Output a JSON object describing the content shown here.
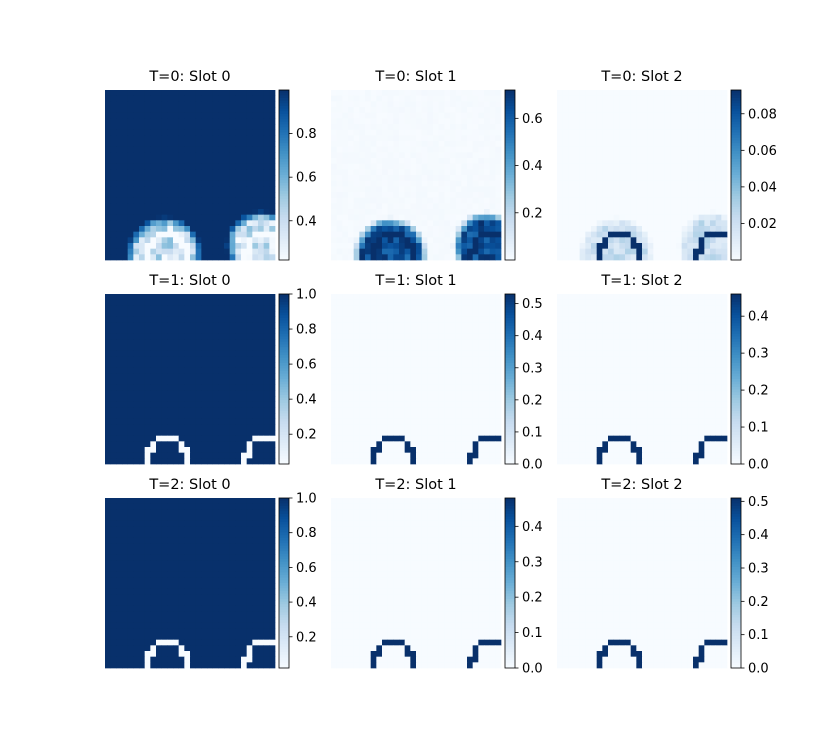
{
  "chart_data": {
    "type": "heatmap",
    "colormap": "Blues",
    "grid_size": 30,
    "rows": 3,
    "cols": 3,
    "panels": [
      {
        "title": "T=0: Slot 0",
        "pattern": "slot0_soft",
        "vmin": 0.22,
        "vmax": 1.0,
        "ticks": [
          0.4,
          0.6,
          0.8
        ]
      },
      {
        "title": "T=0: Slot 1",
        "pattern": "slot1_soft",
        "vmin": 0.0,
        "vmax": 0.72,
        "ticks": [
          0.2,
          0.4,
          0.6
        ]
      },
      {
        "title": "T=0: Slot 2",
        "pattern": "slot2_soft",
        "vmin": 0.0,
        "vmax": 0.093,
        "ticks": [
          0.02,
          0.04,
          0.06,
          0.08
        ]
      },
      {
        "title": "T=1: Slot 0",
        "pattern": "background",
        "vmin": 0.03,
        "vmax": 1.0,
        "ticks": [
          0.2,
          0.4,
          0.6,
          0.8,
          1.0
        ]
      },
      {
        "title": "T=1: Slot 1",
        "pattern": "ring",
        "vmin": 0.0,
        "vmax": 0.53,
        "ticks": [
          0.0,
          0.1,
          0.2,
          0.3,
          0.4,
          0.5
        ]
      },
      {
        "title": "T=1: Slot 2",
        "pattern": "ring",
        "vmin": 0.0,
        "vmax": 0.46,
        "ticks": [
          0.0,
          0.1,
          0.2,
          0.3,
          0.4
        ]
      },
      {
        "title": "T=2: Slot 0",
        "pattern": "background",
        "vmin": 0.02,
        "vmax": 1.0,
        "ticks": [
          0.2,
          0.4,
          0.6,
          0.8,
          1.0
        ]
      },
      {
        "title": "T=2: Slot 1",
        "pattern": "ring",
        "vmin": 0.0,
        "vmax": 0.48,
        "ticks": [
          0.0,
          0.1,
          0.2,
          0.3,
          0.4
        ]
      },
      {
        "title": "T=2: Slot 2",
        "pattern": "ring",
        "vmin": 0.0,
        "vmax": 0.51,
        "ticks": [
          0.0,
          0.1,
          0.2,
          0.3,
          0.4,
          0.5
        ]
      }
    ]
  }
}
